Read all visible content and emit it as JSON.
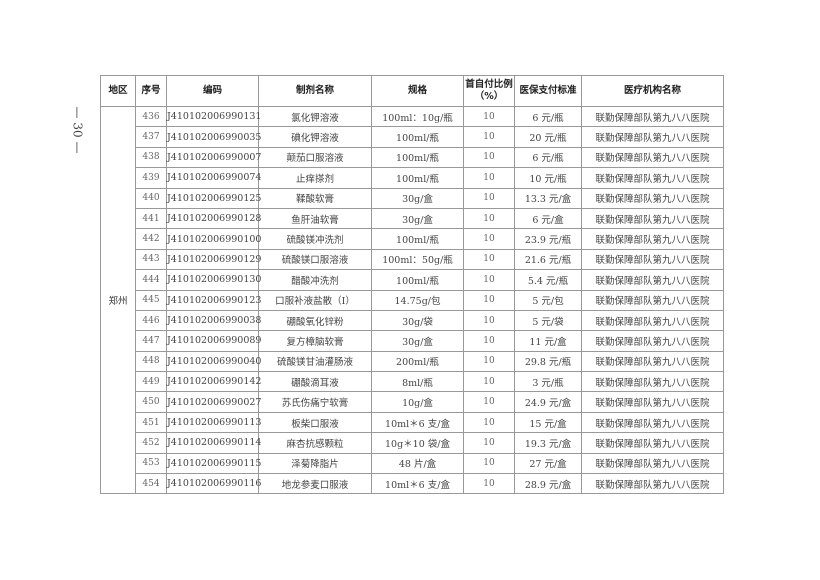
{
  "page_number": "— 30 —",
  "table": {
    "headers": [
      "地区",
      "序号",
      "编码",
      "制剂名称",
      "规格",
      "首自付比例（%）",
      "医保支付标准",
      "医疗机构名称"
    ],
    "region": "郑州",
    "rows": [
      [
        "436",
        "J410102006990131",
        "氯化钾溶液",
        "100ml：10g/瓶",
        "10",
        "6 元/瓶",
        "联勤保障部队第九八八医院"
      ],
      [
        "437",
        "J410102006990035",
        "碘化钾溶液",
        "100ml/瓶",
        "10",
        "20 元/瓶",
        "联勤保障部队第九八八医院"
      ],
      [
        "438",
        "J410102006990007",
        "颠茄口服溶液",
        "100ml/瓶",
        "10",
        "6 元/瓶",
        "联勤保障部队第九八八医院"
      ],
      [
        "439",
        "J410102006990074",
        "止痒搽剂",
        "100ml/瓶",
        "10",
        "10 元/瓶",
        "联勤保障部队第九八八医院"
      ],
      [
        "440",
        "J410102006990125",
        "鞣酸软膏",
        "30g/盒",
        "10",
        "13.3 元/盒",
        "联勤保障部队第九八八医院"
      ],
      [
        "441",
        "J410102006990128",
        "鱼肝油软膏",
        "30g/盒",
        "10",
        "6 元/盒",
        "联勤保障部队第九八八医院"
      ],
      [
        "442",
        "J410102006990100",
        "硫酸镁冲洗剂",
        "100ml/瓶",
        "10",
        "23.9 元/瓶",
        "联勤保障部队第九八八医院"
      ],
      [
        "443",
        "J410102006990129",
        "硫酸镁口服溶液",
        "100ml：50g/瓶",
        "10",
        "21.6 元/瓶",
        "联勤保障部队第九八八医院"
      ],
      [
        "444",
        "J410102006990130",
        "醋酸冲洗剂",
        "100ml/瓶",
        "10",
        "5.4 元/瓶",
        "联勤保障部队第九八八医院"
      ],
      [
        "445",
        "J410102006990123",
        "口服补液盐散（I）",
        "14.75g/包",
        "10",
        "5 元/包",
        "联勤保障部队第九八八医院"
      ],
      [
        "446",
        "J410102006990038",
        "硼酸氧化锌粉",
        "30g/袋",
        "10",
        "5 元/袋",
        "联勤保障部队第九八八医院"
      ],
      [
        "447",
        "J410102006990089",
        "复方樟脑软膏",
        "30g/盒",
        "10",
        "11 元/盒",
        "联勤保障部队第九八八医院"
      ],
      [
        "448",
        "J410102006990040",
        "硫酸镁甘油灌肠液",
        "200ml/瓶",
        "10",
        "29.8 元/瓶",
        "联勤保障部队第九八八医院"
      ],
      [
        "449",
        "J410102006990142",
        "硼酸滴耳液",
        "8ml/瓶",
        "10",
        "3 元/瓶",
        "联勤保障部队第九八八医院"
      ],
      [
        "450",
        "J410102006990027",
        "苏氏伤痛宁软膏",
        "10g/盒",
        "10",
        "24.9 元/盒",
        "联勤保障部队第九八八医院"
      ],
      [
        "451",
        "J410102006990113",
        "板柴口服液",
        "10ml＊6 支/盒",
        "10",
        "15 元/盒",
        "联勤保障部队第九八八医院"
      ],
      [
        "452",
        "J410102006990114",
        "麻杏抗感颗粒",
        "10g＊10 袋/盒",
        "10",
        "19.3 元/盒",
        "联勤保障部队第九八八医院"
      ],
      [
        "453",
        "J410102006990115",
        "泽菊降脂片",
        "48 片/盒",
        "10",
        "27 元/盒",
        "联勤保障部队第九八八医院"
      ],
      [
        "454",
        "J410102006990116",
        "地龙参麦口服液",
        "10ml＊6 支/盒",
        "10",
        "28.9 元/盒",
        "联勤保障部队第九八八医院"
      ]
    ]
  }
}
